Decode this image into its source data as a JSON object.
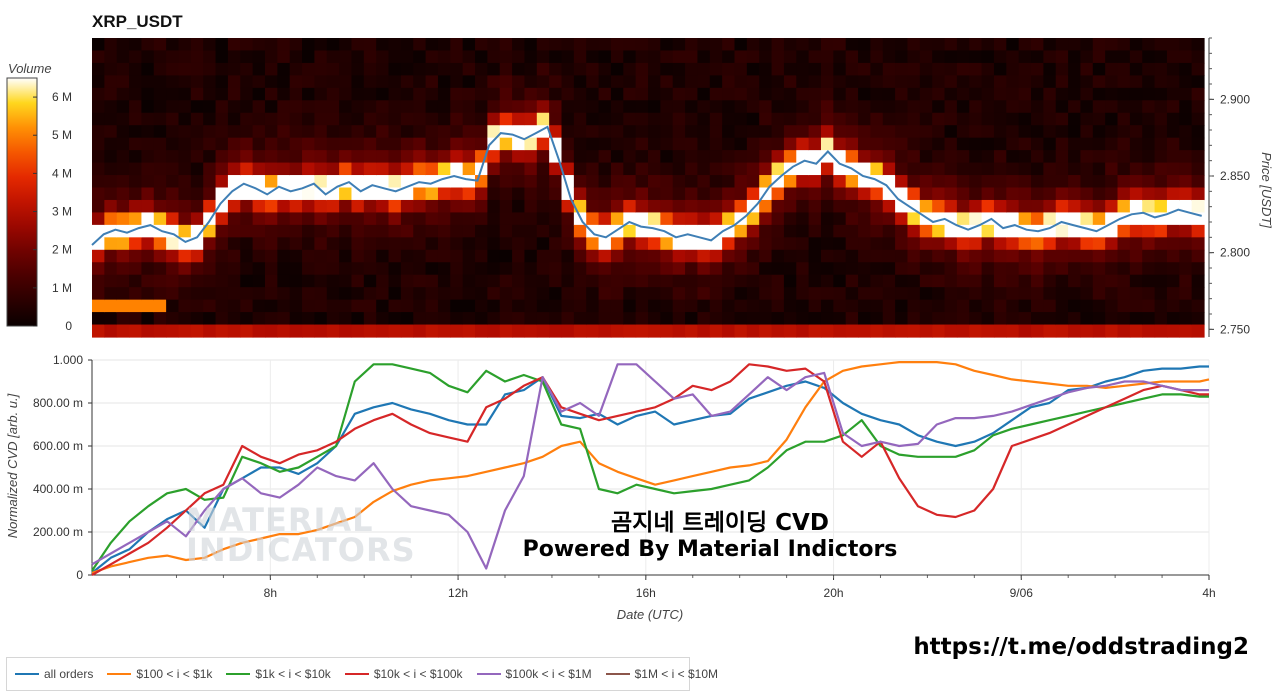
{
  "title": "XRP_USDT",
  "overlay": {
    "line1": "곰지네 트레이딩 CVD",
    "line2": "Powered By Material Indictors",
    "url": "https://t.me/oddstrading2",
    "watermark1": "MATERIAL",
    "watermark2": "INDICATORS"
  },
  "colors": {
    "all": "#1f77b4",
    "s100": "#ff7f0e",
    "s1k": "#2ca02c",
    "s10k": "#d62728",
    "s100k": "#9467bd",
    "s1M": "#8c564b",
    "price_line": "#3f7fb5"
  },
  "legend": [
    {
      "label": "all orders",
      "color_key": "all"
    },
    {
      "label": "$100 < i < $1k",
      "color_key": "s100"
    },
    {
      "label": "$1k < i < $10k",
      "color_key": "s1k"
    },
    {
      "label": "$10k < i < $100k",
      "color_key": "s10k"
    },
    {
      "label": "$100k < i < $1M",
      "color_key": "s100k"
    },
    {
      "label": "$1M < i < $10M",
      "color_key": "s1M"
    }
  ],
  "chart_data": [
    {
      "type": "heatmap",
      "title": "XRP_USDT",
      "ylabel": "Price [USDT]",
      "ylim": [
        2.745,
        2.94
      ],
      "yticks": [
        "2.750",
        "2.800",
        "2.850",
        "2.900"
      ],
      "colorbar": {
        "label": "Volume",
        "ticks": [
          "0",
          "1 M",
          "2 M",
          "3 M",
          "4 M",
          "5 M",
          "6 M"
        ],
        "max": 6.5
      },
      "price_series_hours": [
        0,
        0.25,
        0.5,
        0.75,
        1,
        1.25,
        1.5,
        1.75,
        2,
        2.25,
        2.5,
        2.75,
        3,
        3.25,
        3.5,
        3.75,
        4,
        4.25,
        4.5,
        4.75,
        5,
        5.25,
        5.5,
        5.75,
        6,
        6.25,
        6.5,
        6.75,
        7,
        7.25,
        7.5,
        7.75,
        8,
        8.25,
        8.5,
        8.75,
        9,
        9.25,
        9.5,
        9.75,
        10,
        10.25,
        10.5,
        10.75,
        11,
        11.25,
        11.5,
        11.75,
        12,
        12.25,
        12.5,
        12.75,
        13,
        13.25,
        13.5,
        13.75,
        14,
        14.25,
        14.5,
        14.75,
        15,
        15.25,
        15.5,
        15.75,
        16,
        16.25,
        16.5,
        16.75,
        17,
        17.25,
        17.5,
        17.75,
        18,
        18.25,
        18.5,
        18.75,
        19,
        19.25,
        19.5,
        19.75,
        20,
        20.25,
        20.5,
        20.75,
        21,
        21.25,
        21.5,
        21.75,
        22,
        22.25,
        22.5,
        22.75,
        23,
        23.25,
        23.5,
        23.75
      ],
      "price_series": [
        2.805,
        2.812,
        2.815,
        2.813,
        2.816,
        2.818,
        2.814,
        2.812,
        2.807,
        2.81,
        2.82,
        2.832,
        2.84,
        2.845,
        2.842,
        2.838,
        2.843,
        2.84,
        2.842,
        2.845,
        2.838,
        2.843,
        2.846,
        2.84,
        2.844,
        2.842,
        2.84,
        2.843,
        2.846,
        2.845,
        2.848,
        2.85,
        2.848,
        2.847,
        2.87,
        2.878,
        2.877,
        2.874,
        2.878,
        2.882,
        2.86,
        2.835,
        2.82,
        2.812,
        2.81,
        2.815,
        2.82,
        2.817,
        2.816,
        2.814,
        2.81,
        2.812,
        2.81,
        2.808,
        2.814,
        2.818,
        2.824,
        2.832,
        2.843,
        2.85,
        2.856,
        2.86,
        2.858,
        2.866,
        2.858,
        2.855,
        2.85,
        2.848,
        2.844,
        2.835,
        2.83,
        2.825,
        2.82,
        2.822,
        2.818,
        2.815,
        2.818,
        2.822,
        2.816,
        2.818,
        2.815,
        2.814,
        2.816,
        2.82,
        2.818,
        2.816,
        2.814,
        2.818,
        2.822,
        2.825,
        2.826,
        2.823,
        2.825,
        2.828,
        2.826,
        2.824
      ]
    },
    {
      "type": "line",
      "xlabel": "Date (UTC)",
      "ylabel": "Normalized CVD [arb. u.]",
      "ylim": [
        0,
        1
      ],
      "yticks": [
        "0",
        "200.00 m",
        "400.00 m",
        "600.00 m",
        "800.00 m",
        "1.000"
      ],
      "xticks": [
        "8h",
        "12h",
        "16h",
        "20h",
        "9/06",
        "4h"
      ],
      "xtick_hours": [
        8,
        12,
        16,
        20,
        24,
        28
      ],
      "xlim_hours": [
        4.2,
        28
      ],
      "x_hours": [
        4.2,
        4.6,
        5,
        5.4,
        5.8,
        6.2,
        6.6,
        7,
        7.4,
        7.8,
        8.2,
        8.6,
        9,
        9.4,
        9.8,
        10.2,
        10.6,
        11,
        11.4,
        11.8,
        12.2,
        12.6,
        13,
        13.4,
        13.8,
        14.2,
        14.6,
        15,
        15.4,
        15.8,
        16.2,
        16.6,
        17,
        17.4,
        17.8,
        18.2,
        18.6,
        19,
        19.4,
        19.8,
        20.2,
        20.6,
        21,
        21.4,
        21.8,
        22.2,
        22.6,
        23,
        23.4,
        23.8,
        24.2,
        24.6,
        25,
        25.4,
        25.8,
        26.2,
        26.6,
        27,
        27.4,
        27.8,
        28
      ],
      "series": [
        {
          "name": "all orders",
          "color_key": "all",
          "values": [
            0.01,
            0.08,
            0.12,
            0.2,
            0.26,
            0.3,
            0.22,
            0.4,
            0.45,
            0.5,
            0.5,
            0.47,
            0.52,
            0.6,
            0.75,
            0.78,
            0.8,
            0.77,
            0.75,
            0.72,
            0.7,
            0.7,
            0.84,
            0.86,
            0.92,
            0.74,
            0.73,
            0.75,
            0.7,
            0.74,
            0.76,
            0.7,
            0.72,
            0.74,
            0.75,
            0.82,
            0.85,
            0.88,
            0.9,
            0.87,
            0.8,
            0.75,
            0.72,
            0.7,
            0.65,
            0.62,
            0.6,
            0.62,
            0.66,
            0.72,
            0.78,
            0.8,
            0.86,
            0.87,
            0.9,
            0.92,
            0.95,
            0.96,
            0.96,
            0.97,
            0.97
          ]
        },
        {
          "name": "$100 < i < $1k",
          "color_key": "s100",
          "values": [
            0.01,
            0.04,
            0.06,
            0.08,
            0.09,
            0.07,
            0.08,
            0.12,
            0.15,
            0.17,
            0.19,
            0.19,
            0.21,
            0.24,
            0.27,
            0.34,
            0.39,
            0.42,
            0.44,
            0.45,
            0.46,
            0.48,
            0.5,
            0.52,
            0.55,
            0.6,
            0.62,
            0.52,
            0.48,
            0.45,
            0.42,
            0.44,
            0.46,
            0.48,
            0.5,
            0.51,
            0.53,
            0.63,
            0.78,
            0.9,
            0.95,
            0.97,
            0.98,
            0.99,
            0.99,
            0.99,
            0.98,
            0.95,
            0.93,
            0.91,
            0.9,
            0.89,
            0.88,
            0.88,
            0.87,
            0.88,
            0.89,
            0.9,
            0.9,
            0.9,
            0.91
          ]
        },
        {
          "name": "$1k < i < $10k",
          "color_key": "s1k",
          "values": [
            0.02,
            0.15,
            0.25,
            0.32,
            0.38,
            0.4,
            0.35,
            0.36,
            0.55,
            0.52,
            0.48,
            0.5,
            0.55,
            0.6,
            0.9,
            0.98,
            0.98,
            0.96,
            0.94,
            0.88,
            0.85,
            0.95,
            0.9,
            0.93,
            0.9,
            0.7,
            0.68,
            0.4,
            0.38,
            0.42,
            0.4,
            0.38,
            0.39,
            0.4,
            0.42,
            0.44,
            0.5,
            0.58,
            0.62,
            0.62,
            0.65,
            0.72,
            0.6,
            0.56,
            0.55,
            0.55,
            0.55,
            0.58,
            0.65,
            0.68,
            0.7,
            0.72,
            0.74,
            0.76,
            0.78,
            0.8,
            0.82,
            0.84,
            0.84,
            0.83,
            0.83
          ]
        },
        {
          "name": "$10k < i < $100k",
          "color_key": "s10k",
          "values": [
            0.0,
            0.05,
            0.1,
            0.15,
            0.22,
            0.3,
            0.38,
            0.42,
            0.6,
            0.55,
            0.52,
            0.56,
            0.58,
            0.62,
            0.68,
            0.72,
            0.75,
            0.7,
            0.66,
            0.64,
            0.62,
            0.78,
            0.82,
            0.88,
            0.92,
            0.78,
            0.75,
            0.72,
            0.74,
            0.76,
            0.78,
            0.82,
            0.88,
            0.86,
            0.9,
            0.98,
            0.97,
            0.95,
            0.96,
            0.9,
            0.62,
            0.55,
            0.62,
            0.45,
            0.32,
            0.28,
            0.27,
            0.3,
            0.4,
            0.6,
            0.63,
            0.66,
            0.7,
            0.74,
            0.78,
            0.82,
            0.86,
            0.88,
            0.86,
            0.84,
            0.84
          ]
        },
        {
          "name": "$100k < i < $1M",
          "color_key": "s100k",
          "values": [
            0.05,
            0.1,
            0.15,
            0.2,
            0.25,
            0.18,
            0.3,
            0.4,
            0.45,
            0.38,
            0.36,
            0.42,
            0.5,
            0.46,
            0.44,
            0.52,
            0.4,
            0.32,
            0.3,
            0.28,
            0.2,
            0.03,
            0.3,
            0.46,
            0.92,
            0.76,
            0.8,
            0.74,
            0.98,
            0.98,
            0.9,
            0.82,
            0.84,
            0.74,
            0.76,
            0.84,
            0.92,
            0.86,
            0.92,
            0.94,
            0.66,
            0.6,
            0.62,
            0.6,
            0.61,
            0.7,
            0.73,
            0.73,
            0.74,
            0.76,
            0.79,
            0.82,
            0.85,
            0.87,
            0.88,
            0.9,
            0.9,
            0.88,
            0.86,
            0.86,
            0.86
          ]
        },
        {
          "name": "$1M < i < $10M",
          "color_key": "s1M",
          "values": []
        }
      ]
    }
  ]
}
